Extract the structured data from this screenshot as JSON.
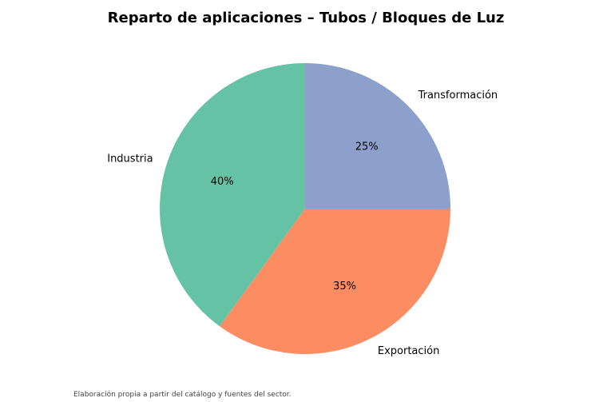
{
  "chart_data": {
    "type": "pie",
    "title": "Reparto de aplicaciones – Tubos / Bloques de Luz",
    "slices": [
      {
        "label": "Transformación",
        "value": 25,
        "pct_label": "25%",
        "color": "#8da0cb"
      },
      {
        "label": "Exportación",
        "value": 35,
        "pct_label": "35%",
        "color": "#fc8d62"
      },
      {
        "label": "Industria",
        "value": 40,
        "pct_label": "40%",
        "color": "#66c2a5"
      }
    ],
    "start_angle": 90,
    "direction": "clockwise"
  },
  "footnote": "Elaboración propia a partir del catálogo y fuentes del sector."
}
